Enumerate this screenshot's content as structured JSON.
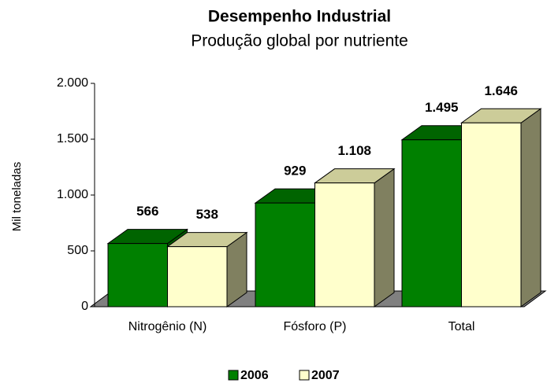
{
  "chart_data": {
    "type": "bar3d",
    "title": "Desempenho Industrial",
    "subtitle": "Produção global por nutriente",
    "y_label": "Mil  toneladas",
    "categories": [
      "Nitrogênio (N)",
      "Fósforo (P)",
      "Total"
    ],
    "series": [
      {
        "name": "2006",
        "color": "#008000",
        "values": [
          566,
          929,
          1495
        ],
        "value_labels": [
          "566",
          "929",
          "1.495"
        ]
      },
      {
        "name": "2007",
        "color": "#ffffcc",
        "values": [
          538,
          1108,
          1646
        ],
        "value_labels": [
          "538",
          "1.108",
          "1.646"
        ]
      }
    ],
    "ylim": [
      0,
      2000
    ],
    "yticks": [
      0,
      500,
      {
        "value": 1000,
        "label": "1.000"
      },
      {
        "value": 1500,
        "label": "1.500"
      },
      {
        "value": 2000,
        "label": "2.000"
      }
    ],
    "legend": "bottom"
  }
}
